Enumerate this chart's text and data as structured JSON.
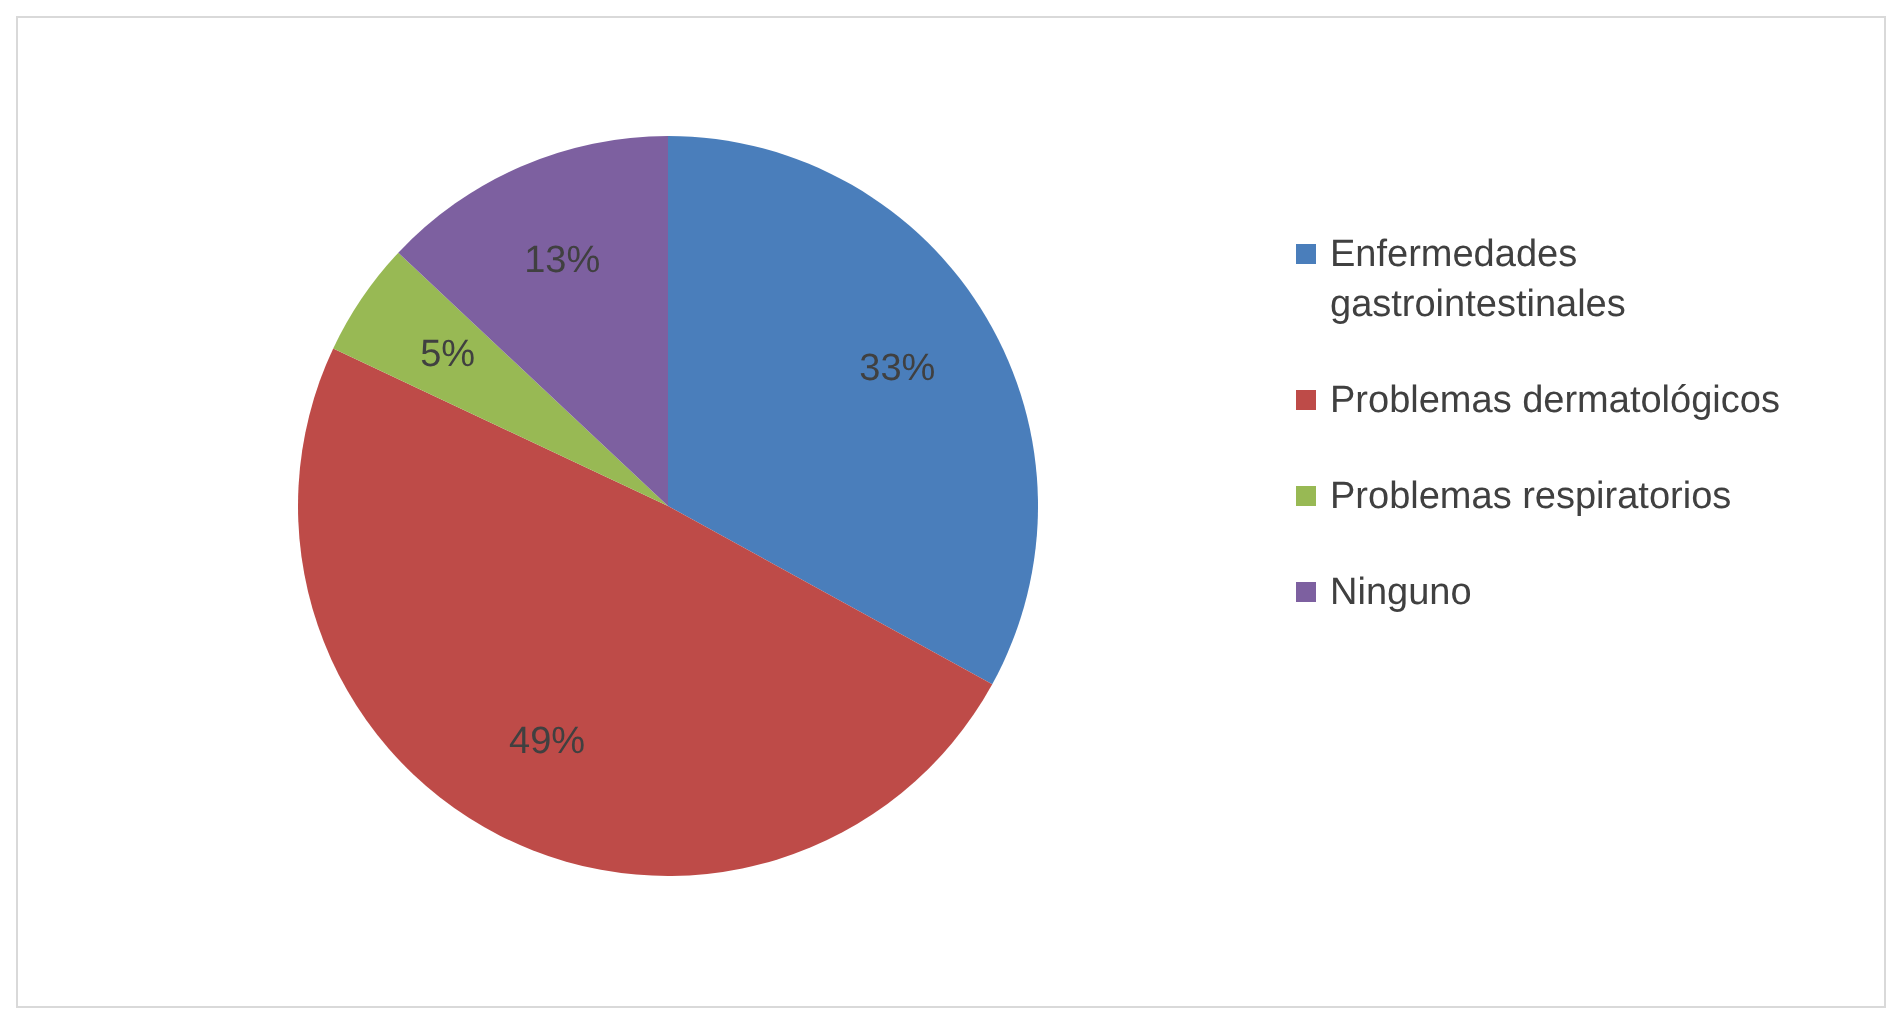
{
  "chart_data": {
    "type": "pie",
    "categories": [
      "Enfermedades gastrointestinales",
      "Problemas dermatológicos",
      "Problemas respiratorios",
      "Ninguno"
    ],
    "values": [
      33,
      49,
      5,
      13
    ],
    "colors": [
      "#4a7ebb",
      "#be4b48",
      "#98b954",
      "#7d60a0"
    ],
    "value_labels": [
      "33%",
      "49%",
      "5%",
      "13%"
    ],
    "legend": "right"
  }
}
